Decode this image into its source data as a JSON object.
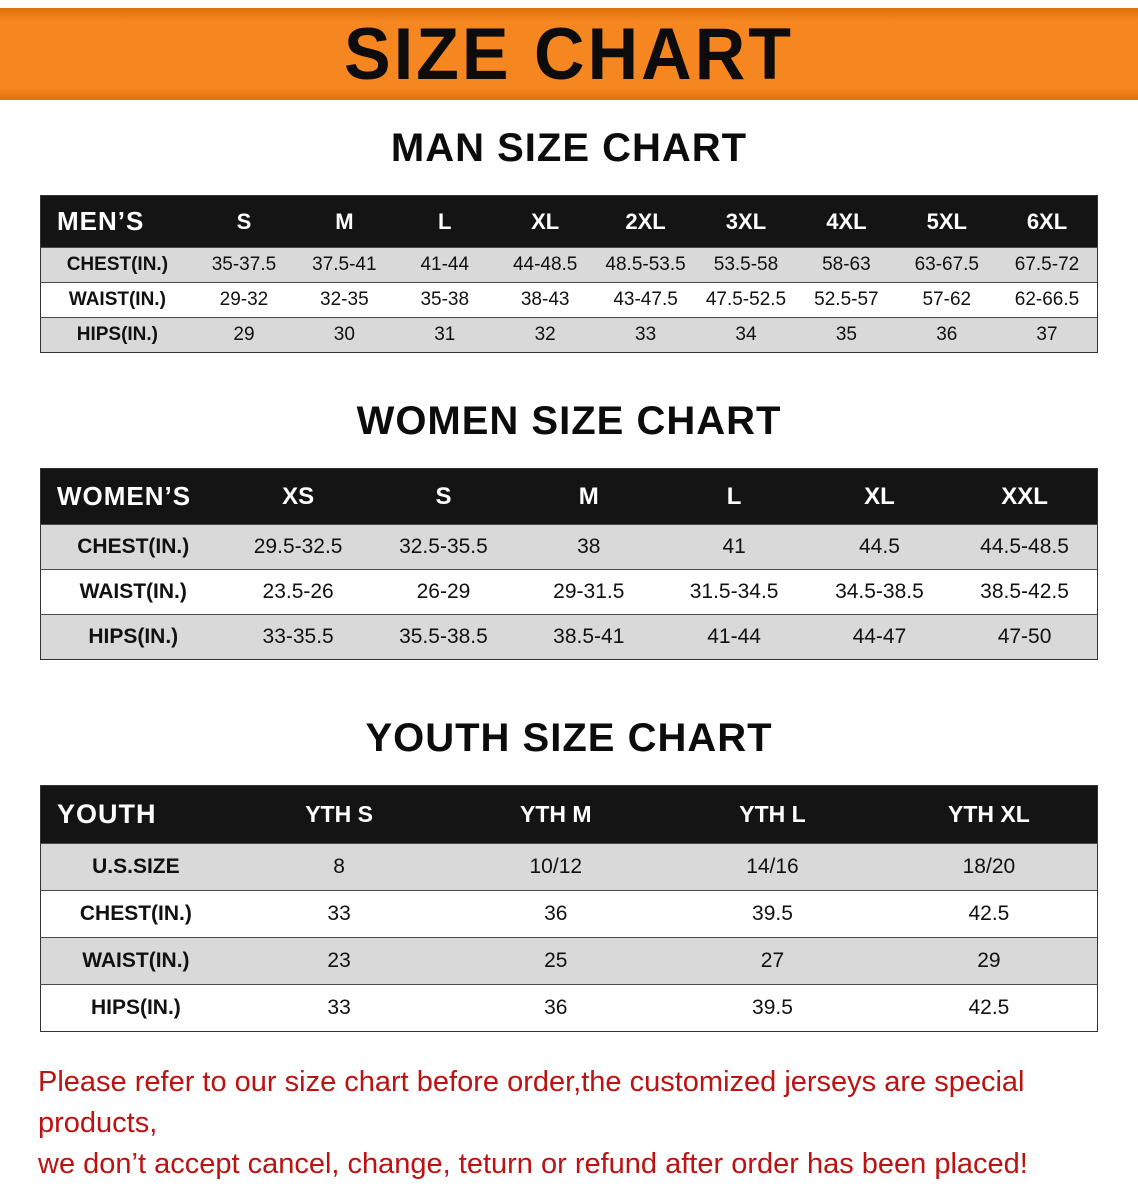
{
  "banner": {
    "title": "SIZE CHART"
  },
  "sections": [
    {
      "heading": "MAN SIZE CHART",
      "table": {
        "corner": "MEN’S",
        "columns": [
          "S",
          "M",
          "L",
          "XL",
          "2XL",
          "3XL",
          "4XL",
          "5XL",
          "6XL"
        ],
        "rows": [
          {
            "label": "CHEST(IN.)",
            "values": [
              "35-37.5",
              "37.5-41",
              "41-44",
              "44-48.5",
              "48.5-53.5",
              "53.5-58",
              "58-63",
              "63-67.5",
              "67.5-72"
            ]
          },
          {
            "label": "WAIST(IN.)",
            "values": [
              "29-32",
              "32-35",
              "35-38",
              "38-43",
              "43-47.5",
              "47.5-52.5",
              "52.5-57",
              "57-62",
              "62-66.5"
            ]
          },
          {
            "label": "HIPS(IN.)",
            "values": [
              "29",
              "30",
              "31",
              "32",
              "33",
              "34",
              "35",
              "36",
              "37"
            ]
          }
        ]
      }
    },
    {
      "heading": "WOMEN SIZE CHART",
      "table": {
        "corner": "WOMEN’S",
        "columns": [
          "XS",
          "S",
          "M",
          "L",
          "XL",
          "XXL"
        ],
        "rows": [
          {
            "label": "CHEST(IN.)",
            "values": [
              "29.5-32.5",
              "32.5-35.5",
              "38",
              "41",
              "44.5",
              "44.5-48.5"
            ]
          },
          {
            "label": "WAIST(IN.)",
            "values": [
              "23.5-26",
              "26-29",
              "29-31.5",
              "31.5-34.5",
              "34.5-38.5",
              "38.5-42.5"
            ]
          },
          {
            "label": "HIPS(IN.)",
            "values": [
              "33-35.5",
              "35.5-38.5",
              "38.5-41",
              "41-44",
              "44-47",
              "47-50"
            ]
          }
        ]
      }
    },
    {
      "heading": "YOUTH SIZE CHART",
      "table": {
        "corner": "YOUTH",
        "columns": [
          "YTH S",
          "YTH M",
          "YTH L",
          "YTH XL"
        ],
        "rows": [
          {
            "label": "U.S.SIZE",
            "values": [
              "8",
              "10/12",
              "14/16",
              "18/20"
            ]
          },
          {
            "label": "CHEST(IN.)",
            "values": [
              "33",
              "36",
              "39.5",
              "42.5"
            ]
          },
          {
            "label": "WAIST(IN.)",
            "values": [
              "23",
              "25",
              "27",
              "29"
            ]
          },
          {
            "label": "HIPS(IN.)",
            "values": [
              "33",
              "36",
              "39.5",
              "42.5"
            ]
          }
        ]
      }
    }
  ],
  "footer": {
    "line1": "Please refer to our size chart before order,the customized jerseys are special products,",
    "line2": "we don’t accept cancel, change, teturn or refund after order has been placed!"
  },
  "colors": {
    "banner_orange": "#F6861F",
    "banner_edge": "#E0700A",
    "header_black": "#141414",
    "row_gray": "#D9D9D9",
    "footer_red": "#BE1111"
  }
}
